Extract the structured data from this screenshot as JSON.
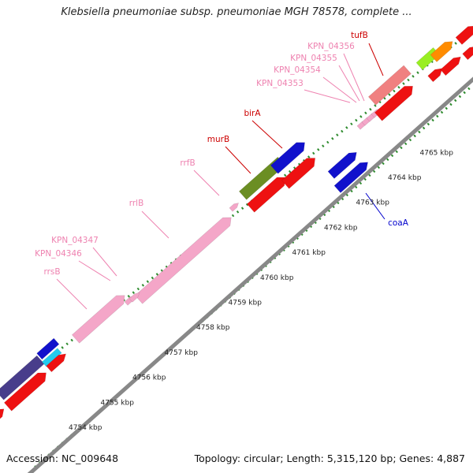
{
  "title": "Klebsiella pneumoniae subsp. pneumoniae MGH 78578, complete ...",
  "footer": {
    "accession_label": "Accession:",
    "accession": "NC_009648",
    "topology_label": "Topology:",
    "topology": "circular",
    "length_label": "Length:",
    "length": "5,315,120 bp",
    "genes_label": "Genes:",
    "genes": "4,887"
  },
  "colors": {
    "backbone": "#888888",
    "tick": "#2e8b2e",
    "rrna": "#f4a6c8",
    "cds_red": "#ee1111",
    "cds_blue": "#1111cc",
    "cds_olive": "#6b8e23",
    "cds_salmon": "#f08080",
    "cds_navy": "#483d8b",
    "cds_cyan": "#22ccee",
    "cds_orange": "#ff8c00",
    "cds_lime": "#99ee22",
    "label_red": "#cc0000",
    "label_pink": "#ee82b0",
    "label_blue": "#0000cc"
  },
  "scale": {
    "unit": "kbp",
    "ticks": [
      {
        "value": 4754,
        "label": "4754 kbp"
      },
      {
        "value": 4755,
        "label": "4755 kbp"
      },
      {
        "value": 4756,
        "label": "4756 kbp"
      },
      {
        "value": 4757,
        "label": "4757 kbp"
      },
      {
        "value": 4758,
        "label": "4758 kbp"
      },
      {
        "value": 4759,
        "label": "4759 kbp"
      },
      {
        "value": 4760,
        "label": "4760 kbp"
      },
      {
        "value": 4761,
        "label": "4761 kbp"
      },
      {
        "value": 4762,
        "label": "4762 kbp"
      },
      {
        "value": 4763,
        "label": "4763 kbp"
      },
      {
        "value": 4764,
        "label": "4764 kbp"
      },
      {
        "value": 4765,
        "label": "4765 kbp"
      }
    ]
  },
  "gene_labels": [
    {
      "name": "tufB",
      "color": "label_red"
    },
    {
      "name": "KPN_04356",
      "color": "label_pink"
    },
    {
      "name": "KPN_04355",
      "color": "label_pink"
    },
    {
      "name": "KPN_04354",
      "color": "label_pink"
    },
    {
      "name": "KPN_04353",
      "color": "label_pink"
    },
    {
      "name": "birA",
      "color": "label_red"
    },
    {
      "name": "murB",
      "color": "label_red"
    },
    {
      "name": "rrfB",
      "color": "label_pink"
    },
    {
      "name": "rrlB",
      "color": "label_pink"
    },
    {
      "name": "KPN_04347",
      "color": "label_pink"
    },
    {
      "name": "KPN_04346",
      "color": "label_pink"
    },
    {
      "name": "rrsB",
      "color": "label_pink"
    },
    {
      "name": "coaA",
      "color": "label_blue"
    }
  ]
}
